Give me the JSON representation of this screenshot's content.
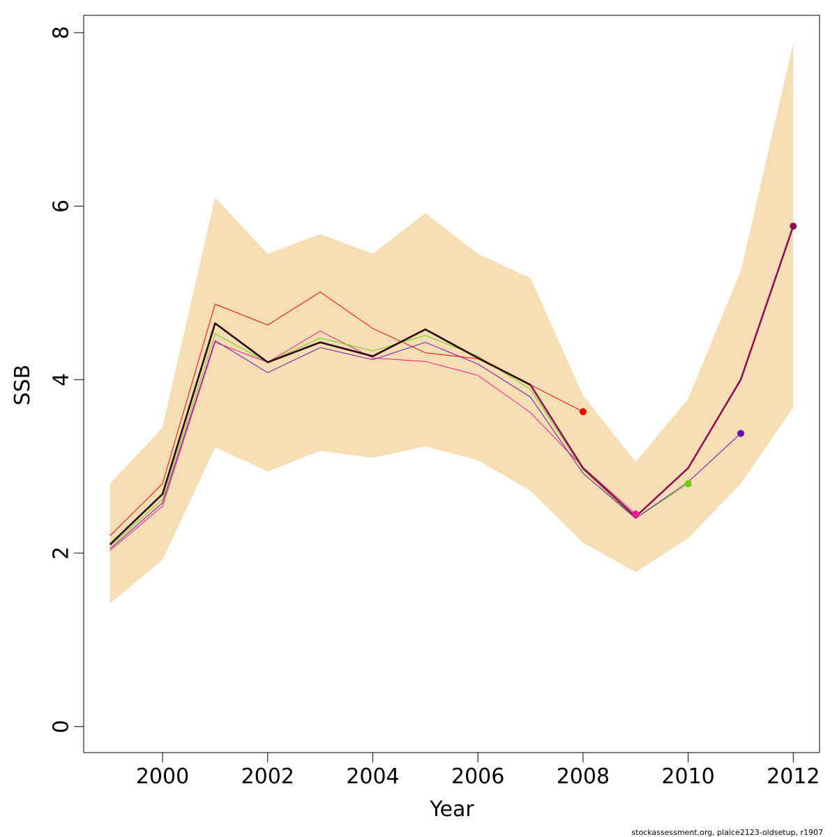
{
  "chart_data": {
    "type": "line",
    "xlabel": "Year",
    "ylabel": "SSB",
    "xlim": [
      1998.5,
      2012.5
    ],
    "ylim": [
      -0.3,
      8.2
    ],
    "x_ticks": [
      2000,
      2002,
      2004,
      2006,
      2008,
      2010,
      2012
    ],
    "y_ticks": [
      0,
      2,
      4,
      6,
      8
    ],
    "confidence_band": {
      "color": "#F5DEB3",
      "x": [
        1999,
        2000,
        2001,
        2002,
        2003,
        2004,
        2005,
        2006,
        2007,
        2008,
        2009,
        2010,
        2011,
        2012
      ],
      "lower": [
        1.42,
        1.92,
        3.22,
        2.94,
        3.18,
        3.1,
        3.23,
        3.07,
        2.72,
        2.12,
        1.78,
        2.17,
        2.8,
        3.68
      ],
      "upper": [
        2.8,
        3.45,
        6.1,
        5.45,
        5.68,
        5.45,
        5.92,
        5.45,
        5.17,
        3.82,
        3.05,
        3.78,
        5.25,
        7.88
      ]
    },
    "series": [
      {
        "color": "#FF0000",
        "width": 1,
        "x": [
          1999,
          2000,
          2001,
          2002,
          2003,
          2004,
          2005,
          2006,
          2007,
          2008
        ],
        "values": [
          2.2,
          2.8,
          4.87,
          4.63,
          5.01,
          4.59,
          4.31,
          4.24,
          3.94,
          3.63
        ],
        "endpoint": true
      },
      {
        "color": "#FF1493",
        "width": 1,
        "x": [
          1999,
          2000,
          2001,
          2002,
          2003,
          2004,
          2005,
          2006,
          2007,
          2008,
          2009
        ],
        "values": [
          2.03,
          2.54,
          4.43,
          4.2,
          4.56,
          4.25,
          4.21,
          4.05,
          3.62,
          2.99,
          2.45
        ],
        "endpoint": true
      },
      {
        "color": "#66CC00",
        "width": 1,
        "x": [
          1999,
          2000,
          2001,
          2002,
          2003,
          2004,
          2005,
          2006,
          2007,
          2008,
          2009,
          2010
        ],
        "values": [
          2.08,
          2.62,
          4.53,
          4.2,
          4.48,
          4.33,
          4.51,
          4.27,
          3.89,
          2.96,
          2.4,
          2.8
        ],
        "endpoint": true
      },
      {
        "color": "#6A0DAD",
        "width": 1,
        "x": [
          1999,
          2000,
          2001,
          2002,
          2003,
          2004,
          2005,
          2006,
          2007,
          2008,
          2009,
          2010,
          2011
        ],
        "values": [
          2.05,
          2.58,
          4.45,
          4.08,
          4.37,
          4.23,
          4.43,
          4.18,
          3.8,
          2.92,
          2.4,
          2.82,
          3.38
        ],
        "endpoint": true
      },
      {
        "color": "#8B0A50",
        "width": 2.5,
        "x": [
          1999,
          2000,
          2001,
          2002,
          2003,
          2004,
          2005,
          2006,
          2007,
          2008,
          2009,
          2010,
          2011,
          2012
        ],
        "values": [
          2.1,
          2.68,
          4.65,
          4.2,
          4.43,
          4.27,
          4.58,
          4.25,
          3.94,
          2.98,
          2.42,
          2.98,
          4.0,
          5.77
        ],
        "endpoint": true
      },
      {
        "color": "#2A0A10",
        "width": 2.5,
        "x": [
          1999,
          2000,
          2001,
          2002,
          2003,
          2004,
          2005,
          2006,
          2007
        ],
        "values": [
          2.1,
          2.68,
          4.65,
          4.2,
          4.43,
          4.27,
          4.58,
          4.25,
          3.94
        ],
        "endpoint": false
      }
    ]
  },
  "footer": "stockassessment.org, plaice2123-oldsetup, r1907"
}
